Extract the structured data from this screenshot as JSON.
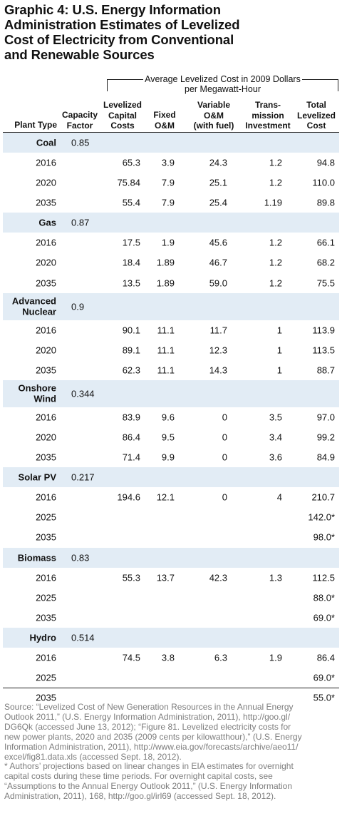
{
  "title_lines": [
    "Graphic 4: U.S. Energy Information",
    "Administration Estimates of Levelized",
    "Cost of Electricity from Conventional",
    "and Renewable Sources"
  ],
  "spanning_header": {
    "line1": "Average Levelized Cost in 2009 Dollars",
    "line2": "per Megawatt-Hour"
  },
  "columns": {
    "plant_type": [
      "Plant Type"
    ],
    "capacity_factor": [
      "Capacity",
      "Factor"
    ],
    "levelized_capital": [
      "Levelized",
      "Capital",
      "Costs"
    ],
    "fixed_om": [
      "Fixed",
      "O&M"
    ],
    "variable_om": [
      "Variable",
      "O&M",
      "(with fuel)"
    ],
    "transmission": [
      "Trans-",
      "mission",
      "Investment"
    ],
    "total": [
      "Total",
      "Levelized",
      "Cost"
    ]
  },
  "groups": [
    {
      "name": [
        "Coal"
      ],
      "capacity": "0.85",
      "rows": [
        {
          "year": "2016",
          "lev": "65.3",
          "fix": "3.9",
          "var": "24.3",
          "tra": "1.2",
          "tot": "94.8"
        },
        {
          "year": "2020",
          "lev": "75.84",
          "fix": "7.9",
          "var": "25.1",
          "tra": "1.2",
          "tot": "110.0"
        },
        {
          "year": "2035",
          "lev": "55.4",
          "fix": "7.9",
          "var": "25.4",
          "tra": "1.19",
          "tot": "89.8"
        }
      ]
    },
    {
      "name": [
        "Gas"
      ],
      "capacity": "0.87",
      "rows": [
        {
          "year": "2016",
          "lev": "17.5",
          "fix": "1.9",
          "var": "45.6",
          "tra": "1.2",
          "tot": "66.1"
        },
        {
          "year": "2020",
          "lev": "18.4",
          "fix": "1.89",
          "var": "46.7",
          "tra": "1.2",
          "tot": "68.2"
        },
        {
          "year": "2035",
          "lev": "13.5",
          "fix": "1.89",
          "var": "59.0",
          "tra": "1.2",
          "tot": "75.5"
        }
      ]
    },
    {
      "name": [
        "Advanced",
        "Nuclear"
      ],
      "capacity": "0.9",
      "rows": [
        {
          "year": "2016",
          "lev": "90.1",
          "fix": "11.1",
          "var": "11.7",
          "tra": "1",
          "tot": "113.9"
        },
        {
          "year": "2020",
          "lev": "89.1",
          "fix": "11.1",
          "var": "12.3",
          "tra": "1",
          "tot": "113.5"
        },
        {
          "year": "2035",
          "lev": "62.3",
          "fix": "11.1",
          "var": "14.3",
          "tra": "1",
          "tot": "88.7"
        }
      ]
    },
    {
      "name": [
        "Onshore",
        "Wind"
      ],
      "capacity": "0.344",
      "rows": [
        {
          "year": "2016",
          "lev": "83.9",
          "fix": "9.6",
          "var": "0",
          "tra": "3.5",
          "tot": "97.0"
        },
        {
          "year": "2020",
          "lev": "86.4",
          "fix": "9.5",
          "var": "0",
          "tra": "3.4",
          "tot": "99.2"
        },
        {
          "year": "2035",
          "lev": "71.4",
          "fix": "9.9",
          "var": "0",
          "tra": "3.6",
          "tot": "84.9"
        }
      ]
    },
    {
      "name": [
        "Solar PV"
      ],
      "capacity": "0.217",
      "rows": [
        {
          "year": "2016",
          "lev": "194.6",
          "fix": "12.1",
          "var": "0",
          "tra": "4",
          "tot": "210.7"
        },
        {
          "year": "2025",
          "lev": "",
          "fix": "",
          "var": "",
          "tra": "",
          "tot": "142.0*"
        },
        {
          "year": "2035",
          "lev": "",
          "fix": "",
          "var": "",
          "tra": "",
          "tot": "98.0*"
        }
      ]
    },
    {
      "name": [
        "Biomass"
      ],
      "capacity": "0.83",
      "rows": [
        {
          "year": "2016",
          "lev": "55.3",
          "fix": "13.7",
          "var": "42.3",
          "tra": "1.3",
          "tot": "112.5"
        },
        {
          "year": "2025",
          "lev": "",
          "fix": "",
          "var": "",
          "tra": "",
          "tot": "88.0*"
        },
        {
          "year": "2035",
          "lev": "",
          "fix": "",
          "var": "",
          "tra": "",
          "tot": "69.0*"
        }
      ]
    },
    {
      "name": [
        "Hydro"
      ],
      "capacity": "0.514",
      "rows": [
        {
          "year": "2016",
          "lev": "74.5",
          "fix": "3.8",
          "var": "6.3",
          "tra": "1.9",
          "tot": "86.4"
        },
        {
          "year": "2025",
          "lev": "",
          "fix": "",
          "var": "",
          "tra": "",
          "tot": "69.0*"
        },
        {
          "year": "2035",
          "lev": "",
          "fix": "",
          "var": "",
          "tra": "",
          "tot": "55.0*"
        }
      ]
    }
  ],
  "footnote_lines": [
    "Source: “Levelized Cost of New Generation Resources in the Annual Energy",
    "Outlook 2011,” (U.S. Energy Information Administration, 2011), http://goo.gl/",
    "DG6Qk (accessed June 13, 2012); “Figure 81. Levelized electricity costs for",
    "new power plants, 2020 and 2035 (2009 cents per kilowatthour),” (U.S. Energy",
    "Information Administration, 2011), http://www.eia.gov/forecasts/archive/aeo11/",
    "excel/fig81.data.xls (accessed Sept. 18, 2012).",
    "* Authors’ projections based on linear changes in EIA estimates for overnight",
    "capital costs during these time periods. For overnight capital costs, see",
    "“Assumptions to the Annual Energy Outlook 2011,” (U.S. Energy Information",
    "Administration, 2011), 168, http://goo.gl/irl69 (accessed Sept. 18, 2012)."
  ]
}
